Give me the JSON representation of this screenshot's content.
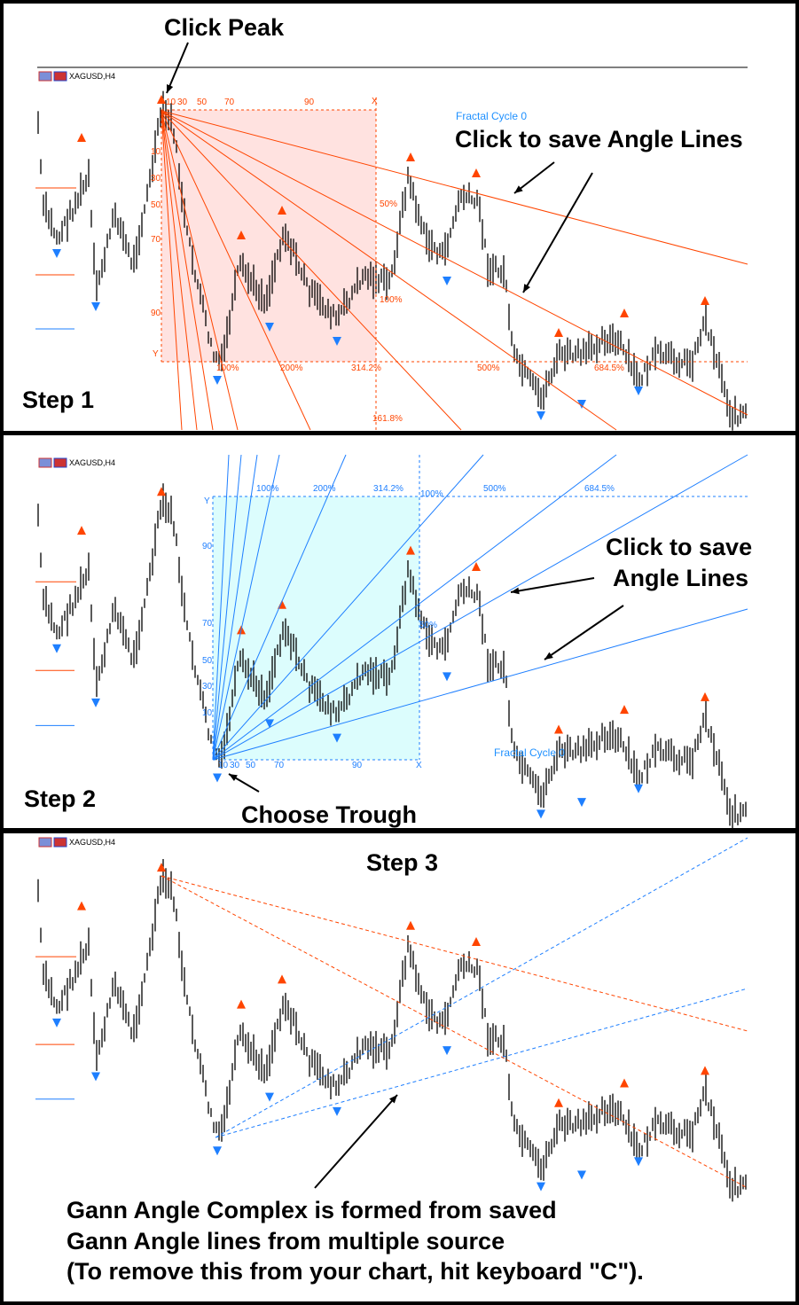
{
  "colors": {
    "gann_red": "#ff4500",
    "gann_blue": "#1e7fff",
    "box_red": "#ffe2e0",
    "box_blue": "#dcfdfd",
    "bars": "#000000"
  },
  "panel1": {
    "symbol": "XAGUSD,H4",
    "step": "Step 1",
    "click_peak": "Click Peak",
    "click_save": "Click to save Angle Lines",
    "fractal_cycle": "Fractal Cycle 0",
    "time_ticks": [
      "10",
      "30",
      "50",
      "70",
      "90",
      "X"
    ],
    "price_ticks": [
      "10",
      "30",
      "50",
      "70",
      "90",
      "Y"
    ],
    "ratio_labels": [
      "50%",
      "100%",
      "161.8%"
    ],
    "pct_labels": [
      "100%",
      "200%",
      "314.2%",
      "500%",
      "684.5%"
    ]
  },
  "panel2": {
    "symbol": "XAGUSD,H4",
    "step": "Step 2",
    "choose_trough": "Choose Trough",
    "click_save_1": "Click to save",
    "click_save_2": "Angle Lines",
    "fractal_cycle": "Fractal Cycle 0",
    "time_ticks": [
      "10",
      "30",
      "50",
      "70",
      "90",
      "X"
    ],
    "price_ticks": [
      "10",
      "30",
      "50",
      "70",
      "90",
      "Y"
    ],
    "ratio_labels": [
      "100%",
      "50%"
    ],
    "pct_labels": [
      "100%",
      "200%",
      "314.2%",
      "500%",
      "684.5%"
    ]
  },
  "panel3": {
    "symbol": "XAGUSD,H4",
    "step": "Step 3",
    "caption": [
      "Gann Angle Complex is formed from saved",
      "Gann Angle lines from multiple source",
      "(To remove this from your chart, hit keyboard \"C\")."
    ]
  }
}
